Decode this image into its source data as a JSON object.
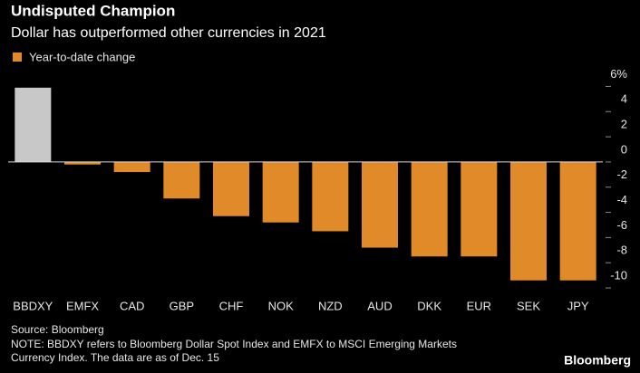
{
  "chart_data": {
    "type": "bar",
    "title": "Undisputed Champion",
    "subtitle": "Dollar has outperformed other currencies in 2021",
    "legend": "Year-to-date change",
    "legend_color": "#e08a2a",
    "categories": [
      "BBDXY",
      "EMFX",
      "CAD",
      "GBP",
      "CHF",
      "NOK",
      "NZD",
      "AUD",
      "DKK",
      "EUR",
      "SEK",
      "JPY"
    ],
    "values": [
      5.9,
      -0.2,
      -0.8,
      -2.9,
      -4.3,
      -4.8,
      -5.5,
      -6.8,
      -7.5,
      -7.5,
      -9.4,
      -9.4
    ],
    "colors": [
      "#c8c8c8",
      "#e08a2a",
      "#e08a2a",
      "#e08a2a",
      "#e08a2a",
      "#e08a2a",
      "#e08a2a",
      "#e08a2a",
      "#e08a2a",
      "#e08a2a",
      "#e08a2a",
      "#e08a2a"
    ],
    "ylim": [
      -10.5,
      6.5
    ],
    "yticks": [
      {
        "value": 6,
        "label": "6%"
      },
      4,
      2,
      0,
      -2,
      -4,
      -6,
      -8,
      -10
    ],
    "source": "Source: Bloomberg",
    "notes": [
      "NOTE: BBDXY refers to Bloomberg Dollar Spot Index and EMFX to MSCI Emerging Markets",
      "Currency Index. The data are as of Dec. 15"
    ],
    "brand": "Bloomberg"
  }
}
